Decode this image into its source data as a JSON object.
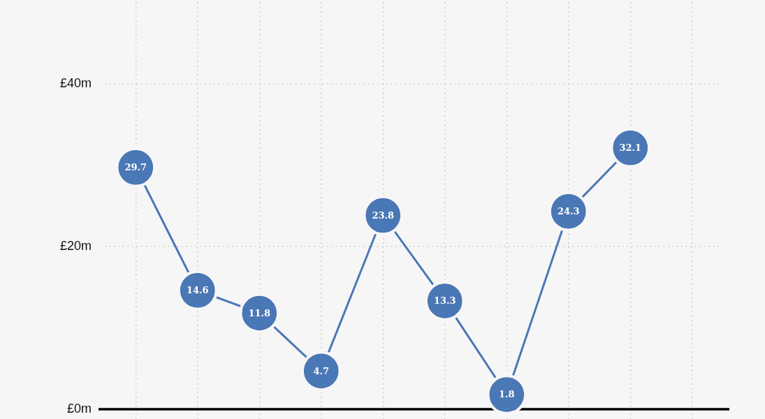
{
  "chart_data": {
    "type": "line",
    "categories": [
      null,
      null,
      null,
      null,
      null,
      null,
      null,
      null,
      null,
      null
    ],
    "values": [
      29.7,
      14.6,
      11.8,
      4.7,
      23.8,
      13.3,
      1.8,
      24.3,
      32.1,
      null
    ],
    "value_labels": [
      "29.7",
      "14.6",
      "11.8",
      "4.7",
      "23.8",
      "13.3",
      "1.8",
      "24.3",
      "32.1",
      null
    ],
    "color": "#4a77b5",
    "marker": "circle",
    "ylim": [
      0,
      50
    ],
    "yticks": [
      {
        "value": 0,
        "label": "£0m"
      },
      {
        "value": 20,
        "label": "£20m"
      },
      {
        "value": 40,
        "label": "£40m"
      }
    ],
    "grid": true,
    "tick_labels": "y"
  }
}
